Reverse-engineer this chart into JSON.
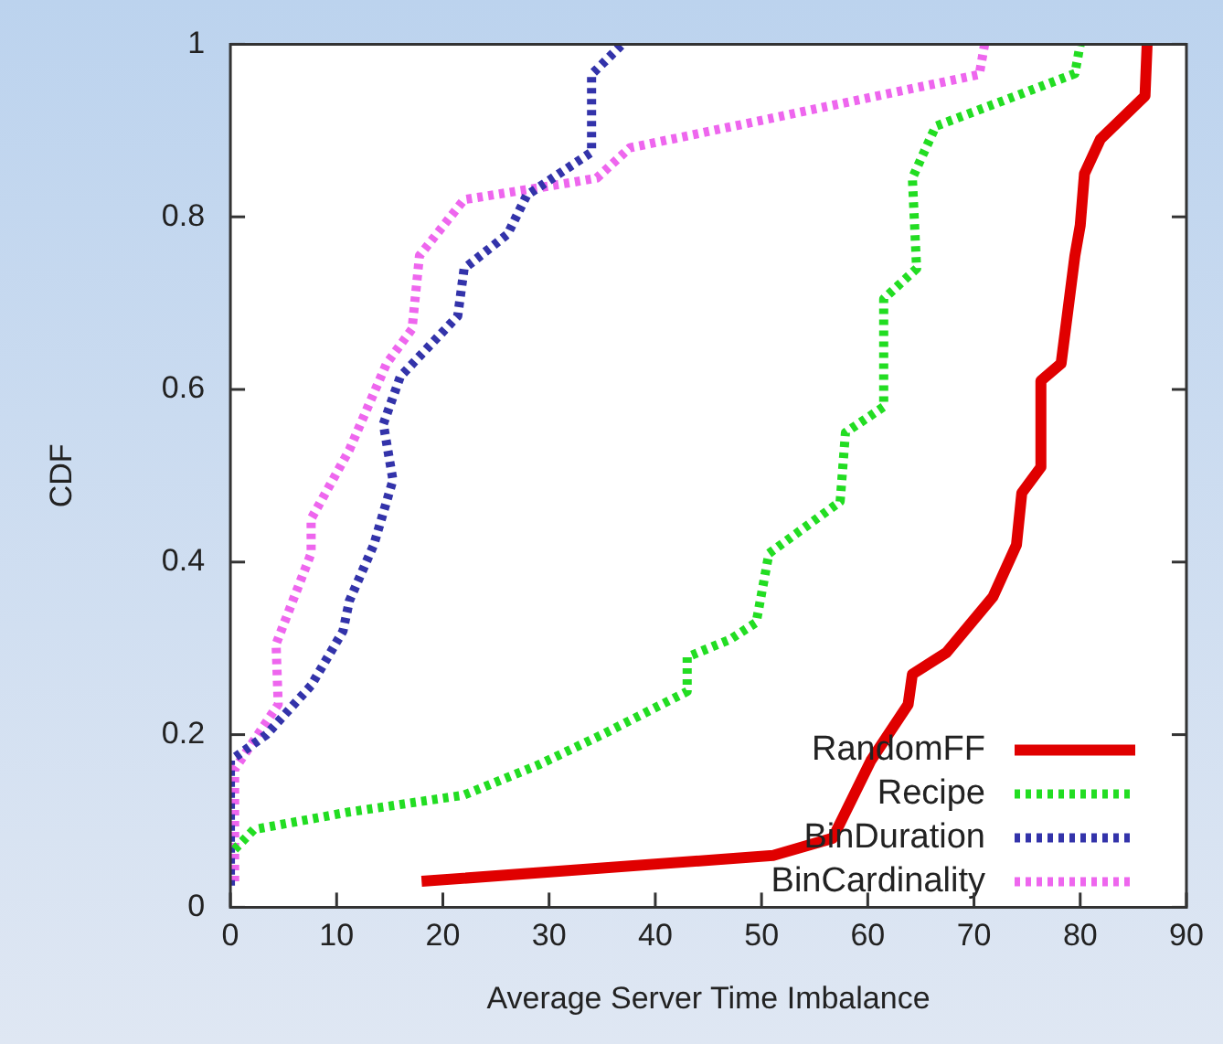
{
  "chart_data": {
    "type": "line",
    "xlabel": "Average Server Time Imbalance",
    "ylabel": "CDF",
    "xlim": [
      0,
      90
    ],
    "xticks": [
      0,
      10,
      20,
      30,
      40,
      50,
      60,
      70,
      80,
      90
    ],
    "ylim": [
      0,
      1
    ],
    "yticks": [
      0,
      0.2,
      0.4,
      0.6,
      0.8,
      1
    ],
    "grid": false,
    "legend": "bottom right",
    "marker": "none",
    "series": [
      {
        "name": "RandomFF",
        "color": "#e00000",
        "line_style": "solid",
        "x": [
          18,
          51.1,
          56.7,
          60.3,
          63.8,
          64.2,
          67.4,
          71.8,
          74,
          74.5,
          76.3,
          76.3,
          78.2,
          79.5,
          80,
          80.4,
          81.9,
          86.1,
          86.3
        ],
        "values": [
          0.03,
          0.06,
          0.08,
          0.17,
          0.235,
          0.27,
          0.295,
          0.36,
          0.42,
          0.48,
          0.51,
          0.61,
          0.63,
          0.755,
          0.79,
          0.85,
          0.89,
          0.94,
          1
        ]
      },
      {
        "name": "Recipe",
        "color": "#22dd22",
        "line_style": "dotted",
        "x": [
          0.4,
          2.2,
          11,
          22,
          29,
          35,
          43,
          43,
          47,
          49.5,
          50.7,
          57.4,
          57.9,
          61.5,
          61.5,
          64.6,
          64.2,
          66.4,
          79.5,
          80
        ],
        "values": [
          0.067,
          0.09,
          0.11,
          0.13,
          0.165,
          0.2,
          0.25,
          0.29,
          0.31,
          0.33,
          0.41,
          0.47,
          0.55,
          0.58,
          0.705,
          0.74,
          0.845,
          0.905,
          0.966,
          1
        ]
      },
      {
        "name": "BinDuration",
        "color": "#3333aa",
        "line_style": "dotted",
        "x": [
          0,
          0,
          3.4,
          7.6,
          10.6,
          11.2,
          13.5,
          15.3,
          14.4,
          16,
          21.4,
          22,
          26.1,
          27.9,
          34,
          34,
          36.9
        ],
        "values": [
          0.025,
          0.17,
          0.2,
          0.257,
          0.32,
          0.355,
          0.42,
          0.495,
          0.56,
          0.615,
          0.685,
          0.74,
          0.78,
          0.825,
          0.875,
          0.965,
          1
        ]
      },
      {
        "name": "BinCardinality",
        "color": "#ee66ee",
        "line_style": "dotted",
        "x": [
          0.4,
          0.4,
          4.5,
          4.3,
          7.6,
          7.6,
          11.2,
          14.7,
          17.1,
          17.8,
          22,
          32.2,
          34.5,
          37.6,
          43.5,
          70.5,
          71
        ],
        "values": [
          0.03,
          0.16,
          0.235,
          0.305,
          0.41,
          0.45,
          0.53,
          0.63,
          0.67,
          0.755,
          0.82,
          0.84,
          0.845,
          0.88,
          0.895,
          0.965,
          1
        ]
      }
    ]
  }
}
